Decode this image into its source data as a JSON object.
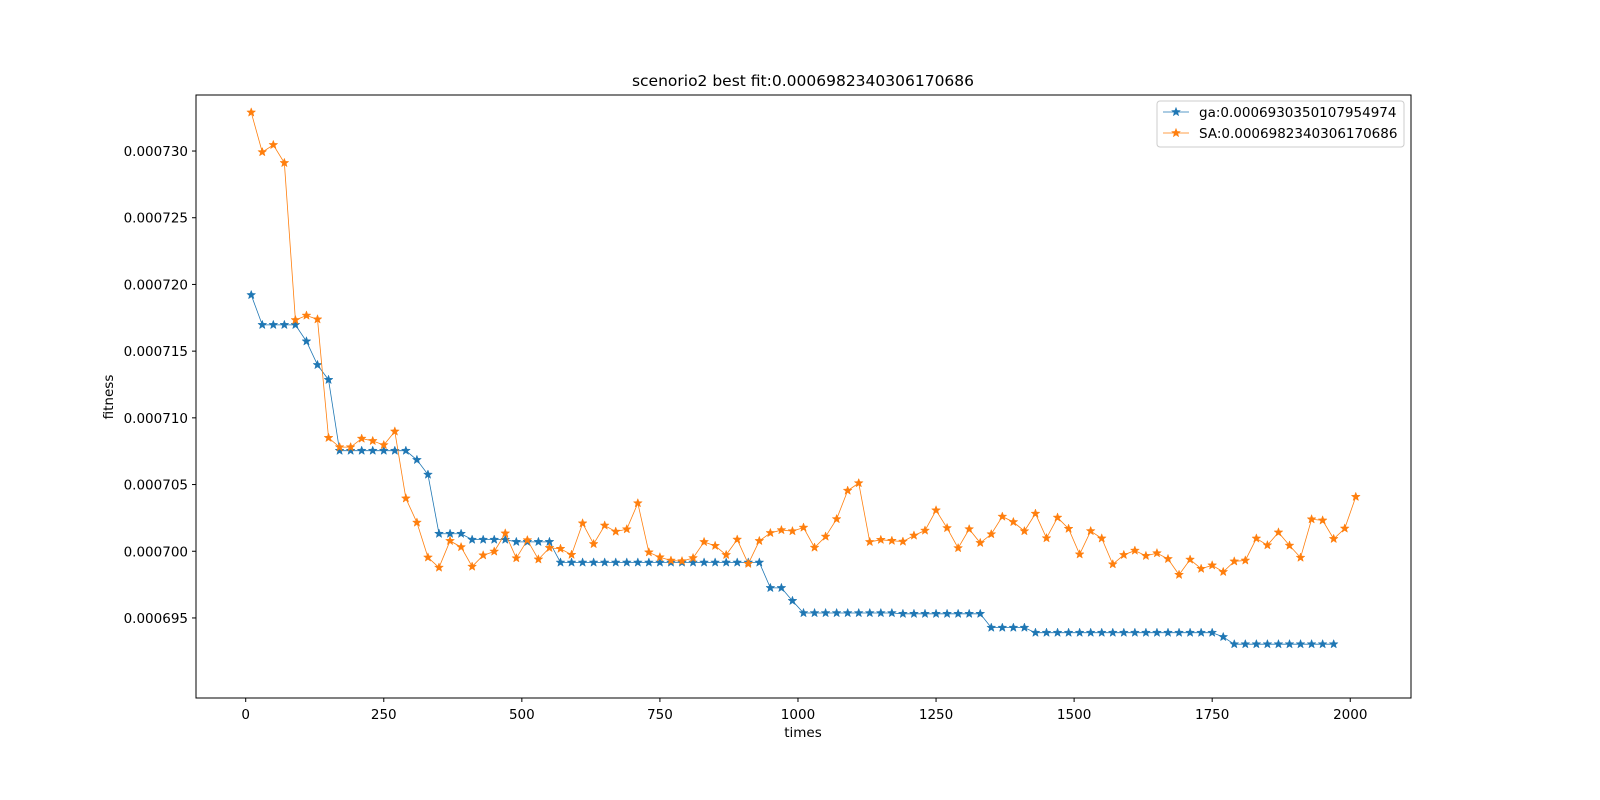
{
  "chart_data": {
    "type": "line",
    "title": "scenorio2 best fit:0.0006982340306170686",
    "xlabel": "times",
    "ylabel": "fitness",
    "xlim": [
      -90,
      2110
    ],
    "ylim": [
      0.000689,
      0.0007342
    ],
    "xticks": [
      0,
      250,
      500,
      750,
      1000,
      1250,
      1500,
      1750,
      2000
    ],
    "xtick_labels": [
      "0",
      "250",
      "500",
      "750",
      "1000",
      "1250",
      "1500",
      "1750",
      "2000"
    ],
    "yticks": [
      0.000695,
      0.0007,
      0.000705,
      0.00071,
      0.000715,
      0.00072,
      0.000725,
      0.00073
    ],
    "ytick_labels": [
      "0.000695",
      "0.000700",
      "0.000705",
      "0.000710",
      "0.000715",
      "0.000720",
      "0.000725",
      "0.000730"
    ],
    "grid": false,
    "legend_position": "top-right",
    "marker": "star",
    "series": [
      {
        "name": "ga:0.0006930350107954974",
        "color": "#1f77b4",
        "x": [
          10,
          30,
          50,
          70,
          90,
          110,
          130,
          150,
          170,
          190,
          210,
          230,
          250,
          270,
          290,
          310,
          330,
          350,
          370,
          390,
          410,
          430,
          450,
          470,
          490,
          510,
          530,
          550,
          570,
          590,
          610,
          630,
          650,
          670,
          690,
          710,
          730,
          750,
          770,
          790,
          810,
          830,
          850,
          870,
          890,
          910,
          930,
          950,
          970,
          990,
          1010,
          1030,
          1050,
          1070,
          1090,
          1110,
          1130,
          1150,
          1170,
          1190,
          1210,
          1230,
          1250,
          1270,
          1290,
          1310,
          1330,
          1350,
          1370,
          1390,
          1410,
          1430,
          1450,
          1470,
          1490,
          1510,
          1530,
          1550,
          1570,
          1590,
          1610,
          1630,
          1650,
          1670,
          1690,
          1710,
          1730,
          1750,
          1770,
          1790,
          1810,
          1830,
          1850,
          1870,
          1890,
          1910,
          1930,
          1950,
          1970
        ],
        "y": [
          0.000719209,
          0.000716969,
          0.000716969,
          0.000716969,
          0.000716969,
          0.000715735,
          0.000713965,
          0.000712849,
          0.000707538,
          0.000707538,
          0.000707538,
          0.000707538,
          0.000707538,
          0.000707538,
          0.000707538,
          0.000706849,
          0.000705748,
          0.000701314,
          0.000701314,
          0.000701314,
          0.000700869,
          0.000700869,
          0.000700869,
          0.000700869,
          0.000700705,
          0.000700705,
          0.000700705,
          0.000700705,
          0.000699157,
          0.000699157,
          0.000699157,
          0.000699157,
          0.000699157,
          0.000699157,
          0.000699157,
          0.000699157,
          0.000699157,
          0.000699157,
          0.000699157,
          0.000699157,
          0.000699157,
          0.000699157,
          0.000699157,
          0.000699157,
          0.000699157,
          0.000699157,
          0.000699157,
          0.000697252,
          0.000697252,
          0.000696284,
          0.00069537,
          0.00069537,
          0.00069537,
          0.00069537,
          0.00069537,
          0.00069537,
          0.00069537,
          0.00069537,
          0.00069537,
          0.000695312,
          0.000695312,
          0.000695312,
          0.000695312,
          0.000695312,
          0.000695312,
          0.000695312,
          0.000695312,
          0.000694273,
          0.000694273,
          0.000694273,
          0.000694273,
          0.000693896,
          0.000693896,
          0.000693896,
          0.000693896,
          0.000693896,
          0.000693896,
          0.000693896,
          0.000693896,
          0.000693896,
          0.000693896,
          0.000693896,
          0.000693896,
          0.000693896,
          0.000693896,
          0.000693896,
          0.000693896,
          0.000693896,
          0.000693577,
          0.000693035,
          0.000693035,
          0.000693035,
          0.000693035,
          0.000693035,
          0.000693035,
          0.000693035,
          0.000693035,
          0.000693035,
          0.000693035
        ]
      },
      {
        "name": "SA:0.0006982340306170686",
        "color": "#ff7f0e",
        "x": [
          10,
          30,
          50,
          70,
          90,
          110,
          130,
          150,
          170,
          190,
          210,
          230,
          250,
          270,
          290,
          310,
          330,
          350,
          370,
          390,
          410,
          430,
          450,
          470,
          490,
          510,
          530,
          550,
          570,
          590,
          610,
          630,
          650,
          670,
          690,
          710,
          730,
          750,
          770,
          790,
          810,
          830,
          850,
          870,
          890,
          910,
          930,
          950,
          970,
          990,
          1010,
          1030,
          1050,
          1070,
          1090,
          1110,
          1130,
          1150,
          1170,
          1190,
          1210,
          1230,
          1250,
          1270,
          1290,
          1310,
          1330,
          1350,
          1370,
          1390,
          1410,
          1430,
          1450,
          1470,
          1490,
          1510,
          1530,
          1550,
          1570,
          1590,
          1610,
          1630,
          1650,
          1670,
          1690,
          1710,
          1730,
          1750,
          1770,
          1790,
          1810,
          1830,
          1850,
          1870,
          1890,
          1910,
          1930,
          1950,
          1970,
          1990,
          2010
        ],
        "y": [
          0.000732893,
          0.00072992,
          0.000730458,
          0.000729109,
          0.000717335,
          0.000717669,
          0.000717386,
          0.000708503,
          0.000707803,
          0.000707803,
          0.000708445,
          0.000708271,
          0.000707962,
          0.00070898,
          0.000703964,
          0.000702152,
          0.000699537,
          0.000698778,
          0.000700778,
          0.000700312,
          0.00069885,
          0.000699697,
          0.000699981,
          0.000701341,
          0.000699479,
          0.000700836,
          0.000699392,
          0.000700253,
          0.000700189,
          0.00069974,
          0.000702094,
          0.000700545,
          0.000701931,
          0.000701475,
          0.000701652,
          0.000703603,
          0.000699921,
          0.000699552,
          0.000699304,
          0.000699261,
          0.000699494,
          0.000700697,
          0.000700408,
          0.000699726,
          0.000700879,
          0.000699057,
          0.000700775,
          0.000701371,
          0.000701588,
          0.000701508,
          0.000701776,
          0.000700276,
          0.000701103,
          0.000702414,
          0.000704545,
          0.000705108,
          0.000700698,
          0.000700857,
          0.000700788,
          0.000700726,
          0.00070118,
          0.000701553,
          0.00070307,
          0.000701741,
          0.00070024,
          0.000701659,
          0.000700627,
          0.000701282,
          0.000702599,
          0.000702193,
          0.00070151,
          0.000702821,
          0.000700982,
          0.000702527,
          0.000701689,
          0.000699769,
          0.000701516,
          0.000700964,
          0.000699026,
          0.000699727,
          0.000700051,
          0.000699655,
          0.000699859,
          0.000699423,
          0.000698237,
          0.000699379,
          0.000698689,
          0.000698944,
          0.000698452,
          0.000699241,
          0.00069931,
          0.000700959,
          0.000700452,
          0.000701414,
          0.000700428,
          0.000699523,
          0.000702398,
          0.000702312,
          0.000700928,
          0.000701707,
          0.00070408
        ]
      }
    ]
  }
}
